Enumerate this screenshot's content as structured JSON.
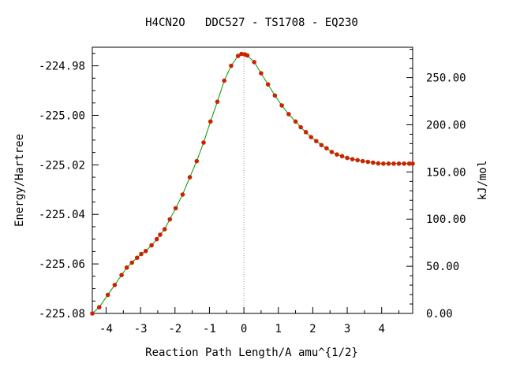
{
  "chart_data": {
    "type": "line",
    "title": "H4CN2O   DDC527 - TS1708 - EQ230",
    "xlabel": "Reaction Path Length/A amu^{1/2}",
    "ylabel": "Energy/Hartree",
    "y2label": "kJ/mol",
    "xlim": [
      -4.4,
      4.9
    ],
    "ylim": [
      -225.08,
      -224.9725
    ],
    "y2lim": [
      0.0,
      282.2
    ],
    "x_ticks": [
      "-4",
      "-3",
      "-2",
      "-1",
      "0",
      "1",
      "2",
      "3",
      "4"
    ],
    "x_tick_values": [
      -4,
      -3,
      -2,
      -1,
      0,
      1,
      2,
      3,
      4
    ],
    "y_ticks": [
      "-224.98",
      "-225.00",
      "-225.02",
      "-225.04",
      "-225.06",
      "-225.08"
    ],
    "y_tick_values": [
      -224.98,
      -225.0,
      -225.02,
      -225.04,
      -225.06,
      -225.08
    ],
    "y2_ticks": [
      "250.00",
      "200.00",
      "150.00",
      "100.00",
      "50.00",
      "0.00"
    ],
    "y2_tick_values": [
      250,
      200,
      150,
      100,
      50,
      0
    ],
    "grid": false,
    "ts_marker_x": 0,
    "colors": {
      "line": "#009900",
      "points": "#cc2200",
      "ts_marker": "#999999"
    },
    "series": [
      {
        "x": [
          -4.4,
          -4.2,
          -3.95,
          -3.75,
          -3.55,
          -3.4,
          -3.25,
          -3.1,
          -2.98,
          -2.85,
          -2.68,
          -2.53,
          -2.43,
          -2.3,
          -2.15,
          -1.98,
          -1.78,
          -1.57,
          -1.37,
          -1.17,
          -0.97,
          -0.77,
          -0.57,
          -0.37,
          -0.17,
          -0.07,
          0.03,
          0.1,
          0.3,
          0.5,
          0.7,
          0.9,
          1.1,
          1.3,
          1.5,
          1.65,
          1.8,
          1.95,
          2.1,
          2.25,
          2.4,
          2.55,
          2.7,
          2.85,
          3.0,
          3.15,
          3.3,
          3.45,
          3.6,
          3.75,
          3.9,
          4.05,
          4.2,
          4.35,
          4.5,
          4.65,
          4.8,
          4.9
        ],
        "y": [
          -225.08,
          -225.0775,
          -225.0725,
          -225.0685,
          -225.0645,
          -225.0615,
          -225.0595,
          -225.0575,
          -225.056,
          -225.0548,
          -225.0525,
          -225.05,
          -225.0482,
          -225.046,
          -225.042,
          -225.0375,
          -225.032,
          -225.025,
          -225.0185,
          -225.011,
          -225.0025,
          -224.9945,
          -224.986,
          -224.98,
          -224.976,
          -224.9752,
          -224.9754,
          -224.9758,
          -224.9785,
          -224.983,
          -224.9875,
          -224.992,
          -224.996,
          -224.9995,
          -225.0025,
          -225.0048,
          -225.0068,
          -225.0088,
          -225.0104,
          -225.012,
          -225.0133,
          -225.0148,
          -225.0158,
          -225.0165,
          -225.0172,
          -225.0177,
          -225.0181,
          -225.0185,
          -225.0188,
          -225.0191,
          -225.0194,
          -225.0195,
          -225.0195,
          -225.0195,
          -225.0195,
          -225.0195,
          -225.0195,
          -225.0195
        ]
      }
    ]
  }
}
